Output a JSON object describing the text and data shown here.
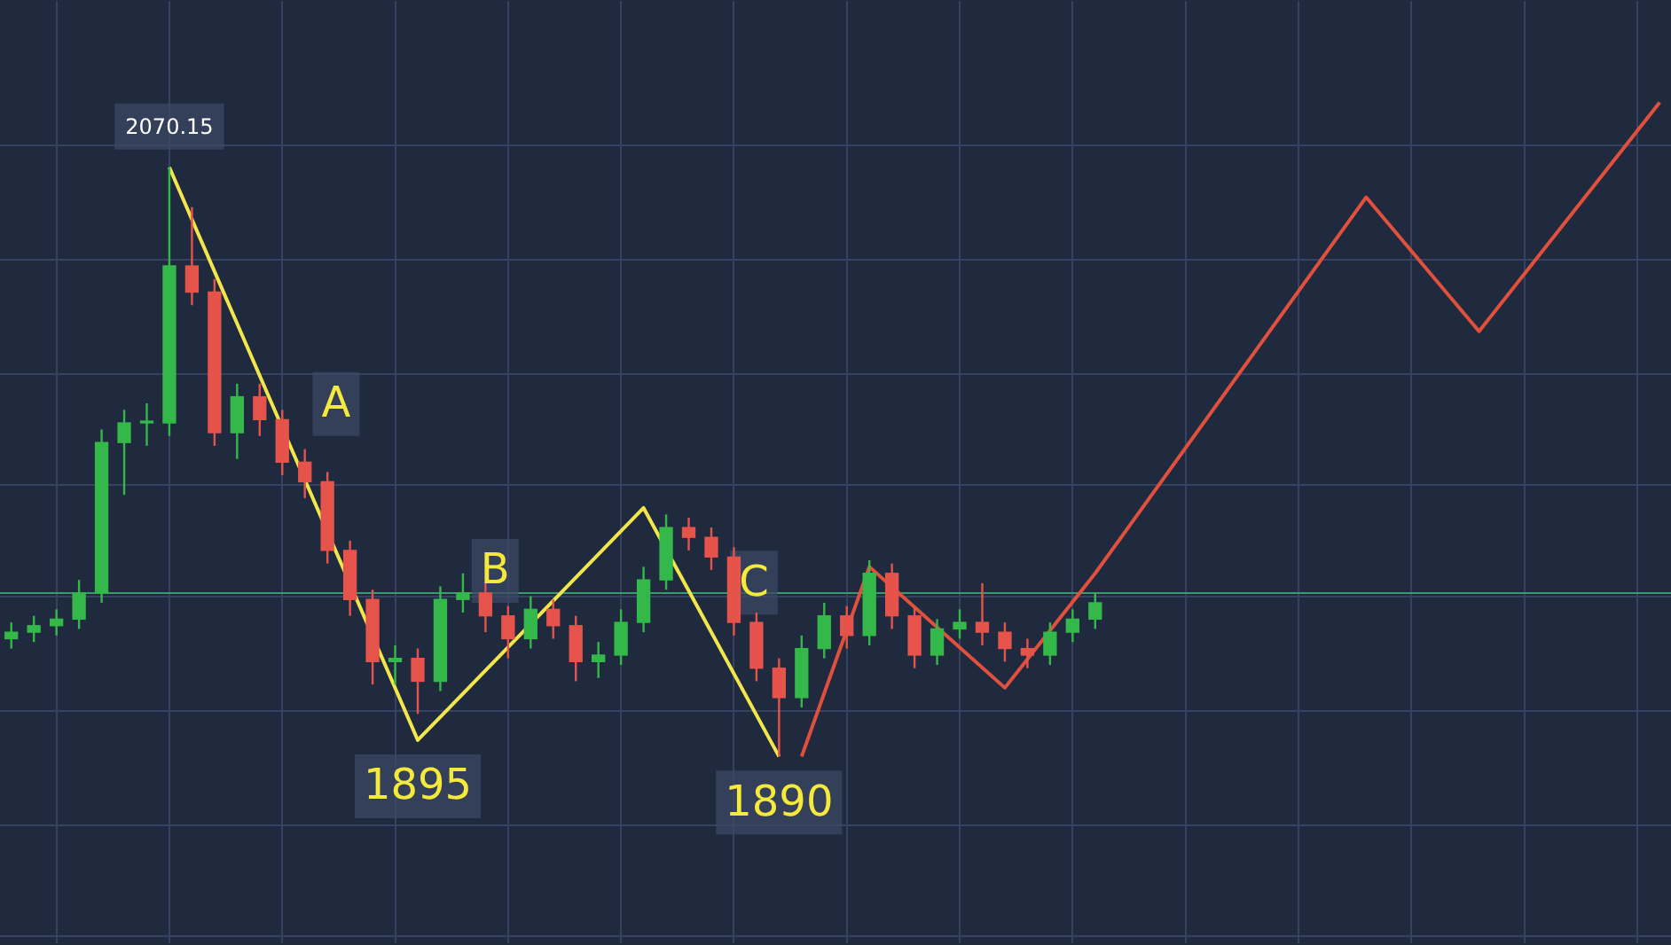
{
  "chart_data": {
    "type": "candlestick",
    "categories": [
      null,
      null,
      null,
      null,
      null,
      null,
      null,
      null,
      null,
      null,
      null,
      null,
      null,
      null,
      null,
      null,
      null,
      null,
      null,
      null,
      null,
      null,
      null,
      null,
      null,
      null,
      null,
      null,
      null,
      null,
      null,
      null,
      null,
      null,
      null,
      null,
      null,
      null,
      null,
      null,
      null,
      null,
      null,
      null,
      null,
      null,
      null,
      null,
      null,
      null,
      null,
      null,
      null,
      null,
      null,
      null,
      null,
      null,
      null,
      null,
      null,
      null,
      null,
      null,
      null,
      null,
      null,
      null,
      null,
      null,
      null,
      null,
      null,
      null
    ],
    "ohlc": [
      [
        1926,
        1931,
        1923,
        1928
      ],
      [
        1928,
        1933,
        1925,
        1930
      ],
      [
        1930,
        1935,
        1927,
        1932
      ],
      [
        1932,
        1944,
        1929,
        1940
      ],
      [
        1940,
        1990,
        1937,
        1986
      ],
      [
        1986,
        1996,
        1970,
        1992
      ],
      [
        1992,
        1998,
        1985,
        1992
      ],
      [
        1992,
        2070.15,
        1988,
        2040
      ],
      [
        2040,
        2058,
        2028,
        2032
      ],
      [
        2032,
        2036,
        1985,
        1989
      ],
      [
        1989,
        2004,
        1981,
        2000
      ],
      [
        2000,
        2004,
        1988,
        1993
      ],
      [
        1993,
        1996,
        1976,
        1980
      ],
      [
        1980,
        1984,
        1969,
        1974
      ],
      [
        1974,
        1977,
        1949,
        1953
      ],
      [
        1953,
        1956,
        1933,
        1938
      ],
      [
        1938,
        1941,
        1912,
        1919
      ],
      [
        1919,
        1924,
        1912,
        1920
      ],
      [
        1920,
        1923,
        1903,
        1913
      ],
      [
        1913,
        1942,
        1910,
        1938
      ],
      [
        1938,
        1946,
        1934,
        1940
      ],
      [
        1940,
        1943,
        1928,
        1933
      ],
      [
        1933,
        1936,
        1920,
        1926
      ],
      [
        1926,
        1939,
        1923,
        1935
      ],
      [
        1935,
        1938,
        1926,
        1930
      ],
      [
        1930,
        1933,
        1913,
        1919
      ],
      [
        1919,
        1925,
        1914,
        1921
      ],
      [
        1921,
        1935,
        1918,
        1931
      ],
      [
        1931,
        1948,
        1928,
        1944
      ],
      [
        1944,
        1964,
        1941,
        1960
      ],
      [
        1960,
        1963,
        1953,
        1957
      ],
      [
        1957,
        1960,
        1947,
        1951
      ],
      [
        1951,
        1954,
        1927,
        1931
      ],
      [
        1931,
        1934,
        1913,
        1917
      ],
      [
        1917,
        1920,
        1890,
        1908
      ],
      [
        1908,
        1927,
        1905,
        1923
      ],
      [
        1923,
        1937,
        1920,
        1933
      ],
      [
        1933,
        1936,
        1923,
        1927
      ],
      [
        1927,
        1950,
        1924,
        1946
      ],
      [
        1946,
        1949,
        1929,
        1933
      ],
      [
        1933,
        1936,
        1917,
        1921
      ],
      [
        1921,
        1932,
        1918,
        1929
      ],
      [
        1929,
        1935,
        1926,
        1931
      ],
      [
        1931,
        1943,
        1924,
        1928
      ],
      [
        1928,
        1931,
        1919,
        1923
      ],
      [
        1923,
        1926,
        1917,
        1921
      ],
      [
        1921,
        1931,
        1918,
        1928
      ],
      [
        1928,
        1935,
        1925,
        1932
      ],
      [
        1932,
        1940,
        1929,
        1937
      ],
      null,
      null,
      null,
      null,
      null,
      null,
      null,
      null,
      null,
      null,
      null,
      null,
      null,
      null,
      null,
      null,
      null,
      null,
      null,
      null,
      null,
      null,
      null,
      null,
      null
    ],
    "colors": [
      "#35b84a",
      "#35b84a",
      "#35b84a",
      "#35b84a",
      "#35b84a",
      "#35b84a",
      "#35b84a",
      "#35b84a",
      "#e5534b",
      "#e5534b",
      "#35b84a",
      "#e5534b",
      "#e5534b",
      "#e5534b",
      "#e5534b",
      "#e5534b",
      "#e5534b",
      "#35b84a",
      "#e5534b",
      "#35b84a",
      "#35b84a",
      "#e5534b",
      "#e5534b",
      "#35b84a",
      "#e5534b",
      "#e5534b",
      "#35b84a",
      "#35b84a",
      "#35b84a",
      "#35b84a",
      "#e5534b",
      "#e5534b",
      "#e5534b",
      "#e5534b",
      "#e5534b",
      "#35b84a",
      "#35b84a",
      "#e5534b",
      "#35b84a",
      "#e5534b",
      "#e5534b",
      "#35b84a",
      "#35b84a",
      "#e5534b",
      "#e5534b",
      "#e5534b",
      "#35b84a",
      "#35b84a",
      "#35b84a",
      null,
      null,
      null,
      null,
      null,
      null,
      null,
      null,
      null,
      null,
      null,
      null,
      null,
      null,
      null,
      null,
      null,
      null,
      null,
      null,
      null,
      null,
      null,
      null,
      null
    ],
    "series": [
      {
        "type": "line",
        "color": "#f2e64a",
        "values": [
          null,
          null,
          null,
          null,
          null,
          null,
          null,
          2070.15,
          null,
          null,
          null,
          null,
          null,
          null,
          null,
          null,
          null,
          null,
          1895,
          null,
          null,
          null,
          null,
          null,
          null,
          null,
          null,
          null,
          1966,
          null,
          null,
          null,
          null,
          null,
          1890,
          null,
          null,
          null,
          null,
          null,
          null,
          null,
          null,
          null,
          null,
          null,
          null,
          null,
          null,
          null,
          null,
          null,
          null,
          null,
          null,
          null,
          null,
          null,
          null,
          null,
          null,
          null,
          null,
          null,
          null,
          null,
          null,
          null,
          null,
          null,
          null,
          null,
          null,
          null
        ]
      },
      {
        "type": "line",
        "color": "#e0503c",
        "values": [
          null,
          null,
          null,
          null,
          null,
          null,
          null,
          null,
          null,
          null,
          null,
          null,
          null,
          null,
          null,
          null,
          null,
          null,
          null,
          null,
          null,
          null,
          null,
          null,
          null,
          null,
          null,
          null,
          null,
          null,
          null,
          null,
          null,
          null,
          null,
          1890,
          null,
          null,
          1948,
          null,
          null,
          null,
          null,
          null,
          1911,
          null,
          null,
          null,
          1946,
          null,
          null,
          null,
          null,
          null,
          null,
          null,
          null,
          null,
          null,
          null,
          2061,
          null,
          null,
          null,
          null,
          2020,
          null,
          null,
          null,
          null,
          null,
          null,
          null,
          2090
        ]
      }
    ],
    "ylim": [
      1833,
      2121
    ],
    "yticks": [
      {
        "value": 1835,
        "label": null
      },
      {
        "value": 1869,
        "label": null
      },
      {
        "value": 1904,
        "label": null
      },
      {
        "value": 1939,
        "label": null
      },
      {
        "value": 1973,
        "label": null
      },
      {
        "value": 2007,
        "label": null
      },
      {
        "value": 2042,
        "label": null
      },
      {
        "value": 2077,
        "label": null
      }
    ],
    "grid": true,
    "legend": false,
    "marker": "none",
    "line_style": "solid",
    "ref_lines": [
      {
        "axis": "y",
        "value": 1940,
        "color": "#3d9a6a"
      }
    ],
    "annotations": [
      {
        "text": "2070.15",
        "y": 2070.15
      },
      "A",
      "B",
      {
        "text": "1895",
        "y": 1895
      },
      "C",
      {
        "text": "1890",
        "y": 1890
      }
    ]
  }
}
